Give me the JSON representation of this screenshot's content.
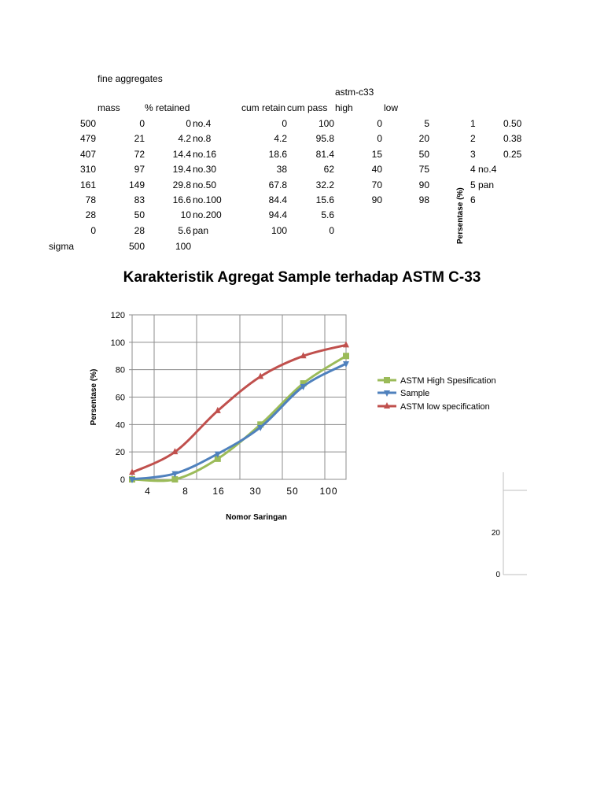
{
  "sheet": {
    "caption": "fine aggregates",
    "astm_label": "astm-c33",
    "headers": {
      "mass": "mass",
      "retained": "% retained",
      "cum_retain": "cum retain",
      "cum_pass": "cum pass",
      "high": "high",
      "low": "low"
    },
    "rows": [
      {
        "mass": "500",
        "retained": "0",
        "pct": "0",
        "sieve": "no.4",
        "cum_retain": "0",
        "cum_pass": "100",
        "high": "0",
        "low": "5",
        "idx": "1",
        "size": "0.50"
      },
      {
        "mass": "479",
        "retained": "21",
        "pct": "4.2",
        "sieve": "no.8",
        "cum_retain": "4.2",
        "cum_pass": "95.8",
        "high": "0",
        "low": "20",
        "idx": "2",
        "size": "0.38"
      },
      {
        "mass": "407",
        "retained": "72",
        "pct": "14.4",
        "sieve": "no.16",
        "cum_retain": "18.6",
        "cum_pass": "81.4",
        "high": "15",
        "low": "50",
        "idx": "3",
        "size": "0.25"
      },
      {
        "mass": "310",
        "retained": "97",
        "pct": "19.4",
        "sieve": "no.30",
        "cum_retain": "38",
        "cum_pass": "62",
        "high": "40",
        "low": "75",
        "idx": "4 no.4",
        "size": ""
      },
      {
        "mass": "161",
        "retained": "149",
        "pct": "29.8",
        "sieve": "no.50",
        "cum_retain": "67.8",
        "cum_pass": "32.2",
        "high": "70",
        "low": "90",
        "idx": "5 pan",
        "size": ""
      },
      {
        "mass": "78",
        "retained": "83",
        "pct": "16.6",
        "sieve": "no.100",
        "cum_retain": "84.4",
        "cum_pass": "15.6",
        "high": "90",
        "low": "98",
        "idx": "6",
        "size": ""
      },
      {
        "mass": "28",
        "retained": "50",
        "pct": "10",
        "sieve": "no.200",
        "cum_retain": "94.4",
        "cum_pass": "5.6",
        "high": "",
        "low": "",
        "idx": "",
        "size": ""
      },
      {
        "mass": "0",
        "retained": "28",
        "pct": "5.6",
        "sieve": "pan",
        "cum_retain": "100",
        "cum_pass": "0",
        "high": "",
        "low": "",
        "idx": "",
        "size": ""
      }
    ],
    "sigma": {
      "label": "sigma",
      "retained": "500",
      "pct": "100"
    }
  },
  "stray_ylabel": "Persentase (%)",
  "stray_ticks": [
    "20",
    "0"
  ],
  "chart_data": {
    "type": "line",
    "title": "Karakteristik Agregat Sample terhadap ASTM C-33",
    "xlabel": "Nomor Saringan",
    "ylabel": "Persentase (%)",
    "ylim": [
      0,
      120
    ],
    "yticks": [
      0,
      20,
      40,
      60,
      80,
      100,
      120
    ],
    "categories": [
      "4",
      "8",
      "16",
      "30",
      "50",
      "100"
    ],
    "x": [
      1,
      2,
      3,
      4,
      5,
      6
    ],
    "grid": true,
    "legend": "right",
    "series": [
      {
        "name": "ASTM High Spesification",
        "color": "#9bbb59",
        "marker": "square",
        "values": [
          0,
          0,
          15,
          40,
          70,
          90
        ]
      },
      {
        "name": "Sample",
        "color": "#4f81bd",
        "marker": "triangle-down",
        "values": [
          0,
          4.2,
          18.6,
          38,
          67.8,
          84.4
        ]
      },
      {
        "name": "ASTM low specification",
        "color": "#c0504d",
        "marker": "triangle-up",
        "values": [
          5,
          20,
          50,
          75,
          90,
          98
        ]
      }
    ]
  }
}
